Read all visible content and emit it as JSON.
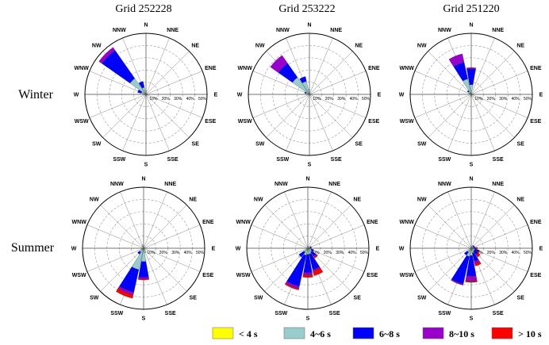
{
  "colors": {
    "lt4": "#ffff00",
    "s4to6": "#99cccc",
    "s6to8": "#0000ff",
    "s8to10": "#9900cc",
    "gt10": "#ff0000"
  },
  "chart_data": {
    "type": "windrose",
    "columns": [
      "Grid 252228",
      "Grid 253222",
      "Grid 251220"
    ],
    "rows": [
      "Winter",
      "Summer"
    ],
    "directions": [
      "N",
      "NNE",
      "NE",
      "ENE",
      "E",
      "ESE",
      "SE",
      "SSE",
      "S",
      "SSW",
      "SW",
      "WSW",
      "W",
      "WNW",
      "NW",
      "NNW"
    ],
    "radial_ticks": [
      "10%",
      "20%",
      "30%",
      "40%",
      "50%"
    ],
    "rmax": 50,
    "legend": [
      "< 4 s",
      "4~6 s",
      "6~8 s",
      "8~10 s",
      "> 10 s"
    ],
    "panels": [
      {
        "column": "Grid 252228",
        "season": "Winter",
        "bars": [
          {
            "dir": "N",
            "segs": [
              1,
              2,
              0,
              0,
              0
            ]
          },
          {
            "dir": "NNW",
            "segs": [
              1,
              5,
              5,
              0,
              0
            ]
          },
          {
            "dir": "NW",
            "segs": [
              1,
              15,
              28,
              3,
              0
            ]
          },
          {
            "dir": "WNW",
            "segs": [
              1,
              3,
              3,
              0,
              0
            ]
          },
          {
            "dir": "W",
            "segs": [
              1,
              1,
              0,
              0,
              0
            ]
          },
          {
            "dir": "E",
            "segs": [
              1,
              1,
              0,
              0,
              0
            ]
          },
          {
            "dir": "S",
            "segs": [
              1,
              1,
              0,
              0,
              0
            ]
          }
        ]
      },
      {
        "column": "Grid 253222",
        "season": "Winter",
        "bars": [
          {
            "dir": "N",
            "segs": [
              1,
              3,
              0,
              0,
              0
            ]
          },
          {
            "dir": "NNW",
            "segs": [
              1,
              10,
              4,
              0,
              0
            ]
          },
          {
            "dir": "NW",
            "segs": [
              1,
              16,
              14,
              8,
              0
            ]
          },
          {
            "dir": "WNW",
            "segs": [
              1,
              2,
              1,
              0,
              0
            ]
          },
          {
            "dir": "W",
            "segs": [
              1,
              1,
              0,
              0,
              0
            ]
          },
          {
            "dir": "E",
            "segs": [
              1,
              1,
              0,
              0,
              0
            ]
          }
        ]
      },
      {
        "column": "Grid 251220",
        "season": "Winter",
        "bars": [
          {
            "dir": "N",
            "segs": [
              1,
              7,
              13,
              1,
              0
            ]
          },
          {
            "dir": "NNW",
            "segs": [
              1,
              12,
              14,
              7,
              0
            ]
          },
          {
            "dir": "NW",
            "segs": [
              1,
              2,
              1,
              0,
              0
            ]
          },
          {
            "dir": "WNW",
            "segs": [
              1,
              1,
              0,
              0,
              0
            ]
          },
          {
            "dir": "E",
            "segs": [
              1,
              1,
              0,
              0,
              0
            ]
          },
          {
            "dir": "S",
            "segs": [
              1,
              1,
              0,
              0,
              0
            ]
          }
        ]
      },
      {
        "column": "Grid 252228",
        "season": "Summer",
        "bars": [
          {
            "dir": "N",
            "segs": [
              1,
              1,
              0,
              0,
              0
            ]
          },
          {
            "dir": "NNW",
            "segs": [
              1,
              2,
              0,
              0,
              0
            ]
          },
          {
            "dir": "E",
            "segs": [
              1,
              1,
              0,
              0,
              0
            ]
          },
          {
            "dir": "SSE",
            "segs": [
              1,
              3,
              0,
              0,
              0
            ]
          },
          {
            "dir": "S",
            "segs": [
              1,
              10,
              13,
              1,
              1
            ]
          },
          {
            "dir": "SSW",
            "segs": [
              1,
              17,
              19,
              2,
              3
            ]
          },
          {
            "dir": "SW",
            "segs": [
              1,
              3,
              2,
              0,
              0
            ]
          },
          {
            "dir": "WSW",
            "segs": [
              1,
              1,
              0,
              0,
              0
            ]
          }
        ]
      },
      {
        "column": "Grid 253222",
        "season": "Summer",
        "bars": [
          {
            "dir": "ENE",
            "segs": [
              1,
              1,
              1,
              0,
              0
            ]
          },
          {
            "dir": "E",
            "segs": [
              1,
              1,
              1,
              0,
              0
            ]
          },
          {
            "dir": "ESE",
            "segs": [
              1,
              2,
              2,
              0,
              0
            ]
          },
          {
            "dir": "SE",
            "segs": [
              1,
              3,
              4,
              1,
              1
            ]
          },
          {
            "dir": "SSE",
            "segs": [
              1,
              4,
              13,
              1,
              4
            ]
          },
          {
            "dir": "S",
            "segs": [
              1,
              4,
              15,
              2,
              2
            ]
          },
          {
            "dir": "SSW",
            "segs": [
              1,
              5,
              26,
              2,
              1
            ]
          },
          {
            "dir": "SW",
            "segs": [
              1,
              3,
              5,
              0,
              0
            ]
          },
          {
            "dir": "N",
            "segs": [
              1,
              1,
              0,
              0,
              0
            ]
          }
        ]
      },
      {
        "column": "Grid 251220",
        "season": "Summer",
        "bars": [
          {
            "dir": "NE",
            "segs": [
              1,
              1,
              1,
              0,
              0
            ]
          },
          {
            "dir": "ENE",
            "segs": [
              1,
              1,
              1,
              0,
              0
            ]
          },
          {
            "dir": "E",
            "segs": [
              1,
              1,
              2,
              0,
              1
            ]
          },
          {
            "dir": "ESE",
            "segs": [
              1,
              2,
              3,
              0,
              1
            ]
          },
          {
            "dir": "SE",
            "segs": [
              1,
              2,
              3,
              1,
              2
            ]
          },
          {
            "dir": "SSE",
            "segs": [
              1,
              3,
              7,
              2,
              2
            ]
          },
          {
            "dir": "S",
            "segs": [
              1,
              5,
              17,
              4,
              1
            ]
          },
          {
            "dir": "SSW",
            "segs": [
              1,
              6,
              23,
              1,
              0
            ]
          },
          {
            "dir": "SW",
            "segs": [
              1,
              3,
              3,
              0,
              0
            ]
          },
          {
            "dir": "N",
            "segs": [
              1,
              1,
              0,
              0,
              0
            ]
          }
        ]
      }
    ]
  }
}
